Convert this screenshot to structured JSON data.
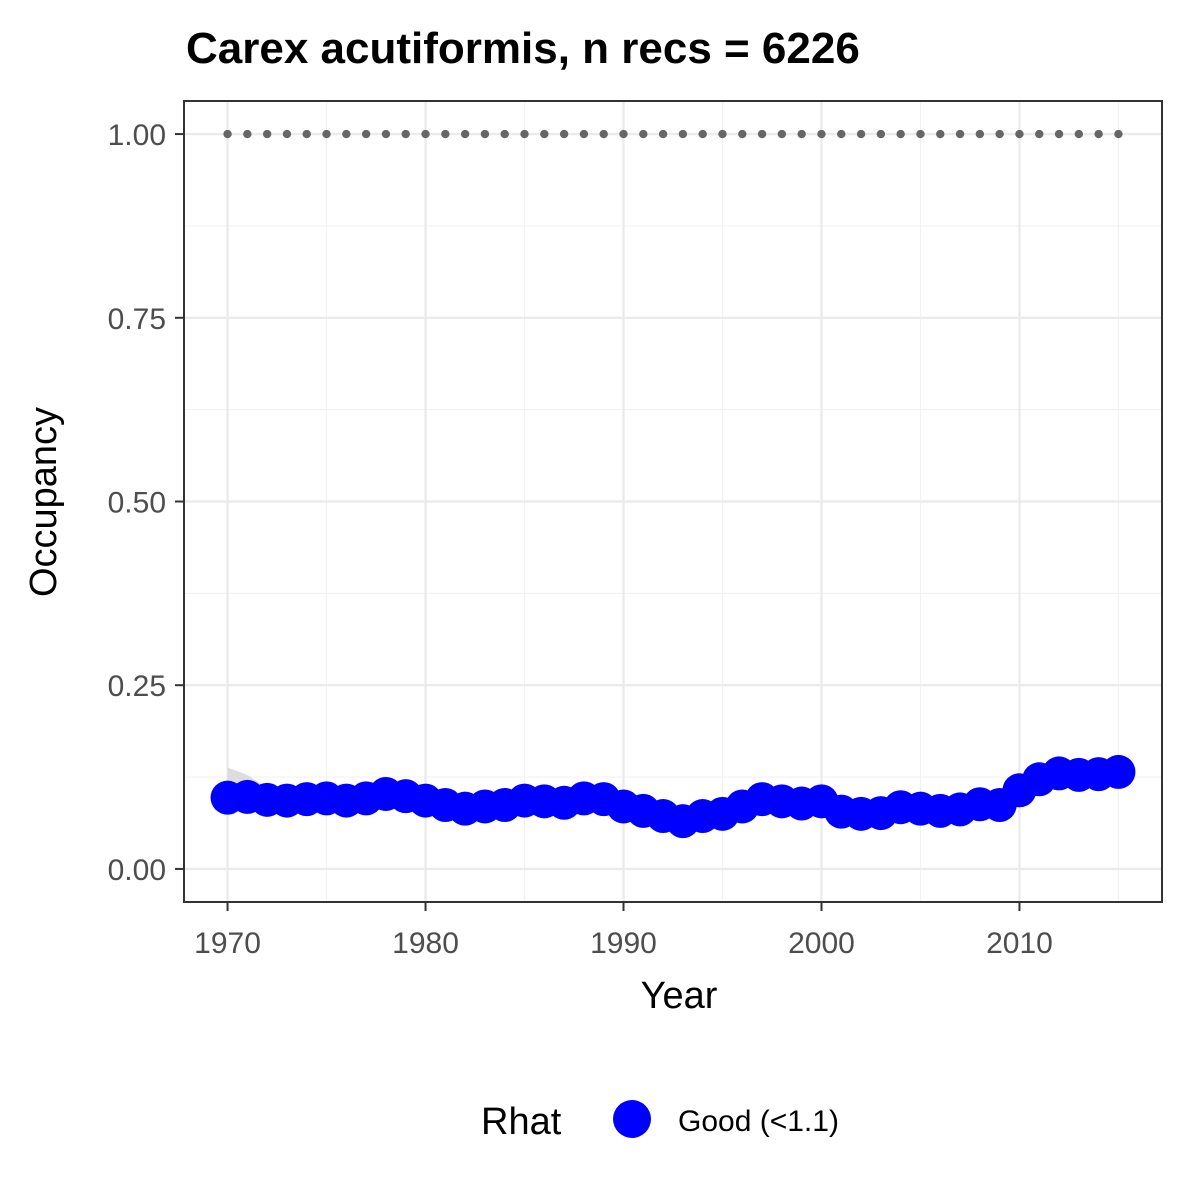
{
  "chart_data": {
    "type": "line",
    "title": "Carex acutiformis, n recs = 6226",
    "xlabel": "Year",
    "ylabel": "Occupancy",
    "xlim": [
      1967.8,
      2017.2
    ],
    "ylim": [
      -0.045,
      1.045
    ],
    "x_ticks": [
      1970,
      1980,
      1990,
      2000,
      2010
    ],
    "y_ticks": [
      0.0,
      0.25,
      0.5,
      0.75,
      1.0
    ],
    "y_tick_labels": [
      "0.00",
      "0.25",
      "0.50",
      "0.75",
      "1.00"
    ],
    "grid": true,
    "legend": {
      "title": "Rhat",
      "position": "bottom",
      "entries": [
        {
          "label": "Good (<1.1)",
          "color": "#0000ff"
        }
      ]
    },
    "reference_line": {
      "y": 1.0,
      "style": "dotted",
      "color": "#666666"
    },
    "series": [
      {
        "color": "#0000ff",
        "x": [
          1970,
          1971,
          1972,
          1973,
          1974,
          1975,
          1976,
          1977,
          1978,
          1979,
          1980,
          1981,
          1982,
          1983,
          1984,
          1985,
          1986,
          1987,
          1988,
          1989,
          1990,
          1991,
          1992,
          1993,
          1994,
          1995,
          1996,
          1997,
          1998,
          1999,
          2000,
          2001,
          2002,
          2003,
          2004,
          2005,
          2006,
          2007,
          2008,
          2009,
          2010,
          2011,
          2012,
          2013,
          2014,
          2015
        ],
        "y": [
          0.097,
          0.098,
          0.094,
          0.093,
          0.095,
          0.096,
          0.093,
          0.096,
          0.102,
          0.099,
          0.093,
          0.087,
          0.082,
          0.085,
          0.087,
          0.093,
          0.092,
          0.09,
          0.096,
          0.095,
          0.085,
          0.079,
          0.072,
          0.065,
          0.072,
          0.075,
          0.085,
          0.095,
          0.092,
          0.089,
          0.092,
          0.078,
          0.075,
          0.076,
          0.084,
          0.082,
          0.079,
          0.081,
          0.088,
          0.087,
          0.107,
          0.122,
          0.13,
          0.128,
          0.129,
          0.132
        ]
      }
    ],
    "ci_band": {
      "color": "#d9d9d9",
      "x": [
        1970,
        1971,
        1972
      ],
      "lower": [
        0.085,
        0.09,
        0.09
      ],
      "upper": [
        0.138,
        0.128,
        0.11
      ]
    }
  }
}
